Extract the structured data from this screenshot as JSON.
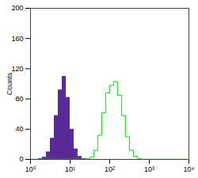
{
  "chart_data": {
    "type": "histogram",
    "y_label": "Counts",
    "log": "x",
    "xlim": [
      1,
      10000
    ],
    "xticks": [
      {
        "value": 1,
        "label": "10⁰"
      },
      {
        "value": 10,
        "label": "10¹"
      },
      {
        "value": 100,
        "label": "10²"
      },
      {
        "value": 1000,
        "label": "10³"
      },
      {
        "value": 10000,
        "label": "10⁴"
      }
    ],
    "ylim": [
      0,
      200
    ],
    "yticks": [
      0,
      40,
      80,
      120,
      160,
      200
    ],
    "bins": [
      1,
      1.26,
      1.58,
      2,
      2.51,
      3.16,
      3.98,
      5.01,
      6.31,
      7.94,
      10,
      12.6,
      15.8,
      20,
      25.1,
      31.6,
      39.8,
      50.1,
      63.1,
      79.4,
      100,
      126,
      158,
      200,
      251,
      316,
      398,
      501,
      631,
      794,
      1000,
      1259,
      1585,
      1995,
      2512,
      3162,
      3981,
      5012,
      6310,
      7943,
      10000
    ],
    "series": [
      {
        "type": "bar",
        "color": "#5a2a96",
        "values": [
          0,
          0,
          1,
          3,
          10,
          28,
          58,
          92,
          110,
          82,
          40,
          14,
          4,
          1,
          0,
          0,
          0,
          0,
          0,
          0,
          0,
          0,
          0,
          0,
          0,
          0,
          0,
          0,
          0,
          0,
          0,
          0,
          0,
          0,
          0,
          0,
          0,
          0,
          0,
          0
        ]
      },
      {
        "type": "line",
        "color": "#33e633",
        "values": [
          0,
          0,
          0,
          0,
          0,
          0,
          0,
          0,
          0,
          0,
          0,
          0,
          0,
          0,
          1,
          3,
          12,
          32,
          62,
          88,
          98,
          103,
          85,
          58,
          30,
          12,
          4,
          1,
          0,
          0,
          0,
          0,
          0,
          0,
          0,
          0,
          0,
          0,
          0,
          0
        ]
      }
    ]
  }
}
